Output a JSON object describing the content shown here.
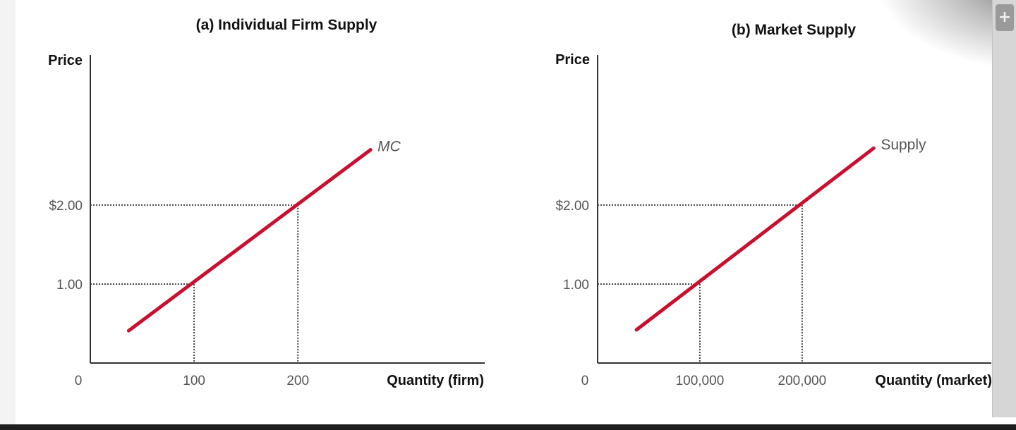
{
  "colors": {
    "curve": "#c8102e",
    "axis": "#333333",
    "guide": "#444444"
  },
  "scrollbar": {
    "expand_icon": "plus-icon",
    "expand_glyph": "+"
  },
  "chart_data": [
    {
      "type": "line",
      "title": "(a) Individual Firm Supply",
      "xlabel": "Quantity (firm)",
      "ylabel": "Price",
      "origin_label": "0",
      "xlim": [
        0,
        380
      ],
      "ylim": [
        0,
        3.9
      ],
      "grid": false,
      "x_ticks": [
        {
          "value": 100,
          "label": "100"
        },
        {
          "value": 200,
          "label": "200"
        }
      ],
      "y_ticks": [
        {
          "value": 1,
          "label": "1.00"
        },
        {
          "value": 2,
          "label": "$2.00"
        }
      ],
      "series": [
        {
          "name": "MC",
          "label_italic": true,
          "x": [
            37,
            270
          ],
          "y": [
            0.41,
            2.7
          ]
        }
      ],
      "guides": [
        {
          "x": 100,
          "y": 1
        },
        {
          "x": 200,
          "y": 2
        }
      ]
    },
    {
      "type": "line",
      "title": "(b) Market Supply",
      "xlabel": "Quantity (market)",
      "ylabel": "Price",
      "origin_label": "0",
      "xlim": [
        0,
        385000
      ],
      "ylim": [
        0,
        3.9
      ],
      "grid": false,
      "x_ticks": [
        {
          "value": 100000,
          "label": "100,000"
        },
        {
          "value": 200000,
          "label": "200,000"
        }
      ],
      "y_ticks": [
        {
          "value": 1,
          "label": "1.00"
        },
        {
          "value": 2,
          "label": "$2.00"
        }
      ],
      "series": [
        {
          "name": "Supply",
          "label_italic": false,
          "x": [
            38000,
            270000
          ],
          "y": [
            0.42,
            2.72
          ]
        }
      ],
      "guides": [
        {
          "x": 100000,
          "y": 1
        },
        {
          "x": 200000,
          "y": 2
        }
      ]
    }
  ]
}
